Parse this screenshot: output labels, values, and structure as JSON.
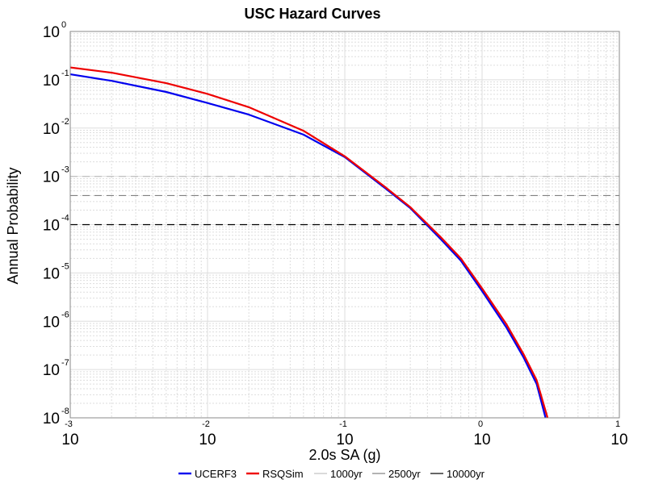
{
  "chart_data": {
    "type": "line",
    "title": "USC Hazard Curves",
    "xlabel": "2.0s SA (g)",
    "ylabel": "Annual Probability",
    "x_scale": "log",
    "y_scale": "log",
    "xlim": [
      0.001,
      10
    ],
    "ylim": [
      1e-08,
      1
    ],
    "grid": true,
    "legend_position": "bottom-center",
    "x_ticks": [
      {
        "base": "10",
        "exp": "-3",
        "value": 0.001
      },
      {
        "base": "10",
        "exp": "-2",
        "value": 0.01
      },
      {
        "base": "10",
        "exp": "-1",
        "value": 0.1
      },
      {
        "base": "10",
        "exp": "0",
        "value": 1
      },
      {
        "base": "10",
        "exp": "1",
        "value": 10
      }
    ],
    "y_ticks": [
      {
        "base": "10",
        "exp": "0",
        "value": 1
      },
      {
        "base": "10",
        "exp": "-1",
        "value": 0.1
      },
      {
        "base": "10",
        "exp": "-2",
        "value": 0.01
      },
      {
        "base": "10",
        "exp": "-3",
        "value": 0.001
      },
      {
        "base": "10",
        "exp": "-4",
        "value": 0.0001
      },
      {
        "base": "10",
        "exp": "-5",
        "value": 1e-05
      },
      {
        "base": "10",
        "exp": "-6",
        "value": 1e-06
      },
      {
        "base": "10",
        "exp": "-7",
        "value": 1e-07
      },
      {
        "base": "10",
        "exp": "-8",
        "value": 1e-08
      }
    ],
    "series": [
      {
        "name": "UCERF3",
        "color": "#0000ee",
        "x": [
          0.001,
          0.002,
          0.005,
          0.01,
          0.02,
          0.05,
          0.1,
          0.2,
          0.3,
          0.5,
          0.7,
          1.0,
          1.5,
          2.0,
          2.5,
          2.9
        ],
        "y": [
          0.13,
          0.095,
          0.056,
          0.033,
          0.019,
          0.0073,
          0.0025,
          0.00055,
          0.00022,
          5e-05,
          1.8e-05,
          4.2e-06,
          7.5e-07,
          1.8e-07,
          5e-08,
          1e-08
        ]
      },
      {
        "name": "RSQSim",
        "color": "#ee0000",
        "x": [
          0.001,
          0.002,
          0.005,
          0.01,
          0.02,
          0.05,
          0.1,
          0.2,
          0.3,
          0.5,
          0.7,
          1.0,
          1.5,
          2.0,
          2.5,
          3.0
        ],
        "y": [
          0.18,
          0.14,
          0.085,
          0.051,
          0.027,
          0.0088,
          0.0026,
          0.00058,
          0.00023,
          5.5e-05,
          2e-05,
          4.8e-06,
          8.8e-07,
          2.1e-07,
          6e-08,
          1e-08
        ]
      },
      {
        "name": "1000yr",
        "color": "#c0c0c0",
        "dashed": true,
        "horizontal": 0.001
      },
      {
        "name": "2500yr",
        "color": "#808080",
        "dashed": true,
        "horizontal": 0.0004
      },
      {
        "name": "10000yr",
        "color": "#000000",
        "dashed": true,
        "horizontal": 0.0001
      }
    ]
  }
}
